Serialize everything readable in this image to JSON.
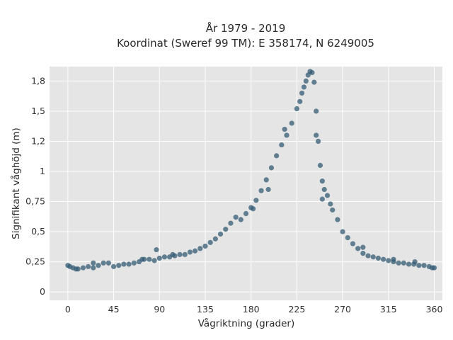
{
  "chart_data": {
    "type": "scatter",
    "title_line1": "År 1979 - 2019",
    "title_line2": "Koordinat (Sweref 99 TM): E 358174, N 6249005",
    "xlabel": "Vågriktning (grader)",
    "ylabel": "Signifikant våghöjd (m)",
    "xlim": [
      -18,
      368
    ],
    "ylim": [
      -0.07,
      1.87
    ],
    "x_ticks": [
      {
        "value": 0,
        "label": "0"
      },
      {
        "value": 45,
        "label": "45"
      },
      {
        "value": 90,
        "label": "90"
      },
      {
        "value": 135,
        "label": "135"
      },
      {
        "value": 180,
        "label": "180"
      },
      {
        "value": 225,
        "label": "225"
      },
      {
        "value": 270,
        "label": "270"
      },
      {
        "value": 315,
        "label": "315"
      },
      {
        "value": 360,
        "label": "360"
      }
    ],
    "y_ticks": [
      {
        "value": 0,
        "label": "0"
      },
      {
        "value": 0.25,
        "label": "0,25"
      },
      {
        "value": 0.5,
        "label": "0,5"
      },
      {
        "value": 0.75,
        "label": "0,75"
      },
      {
        "value": 1.0,
        "label": "1"
      },
      {
        "value": 1.25,
        "label": "1,2"
      },
      {
        "value": 1.5,
        "label": "1,5"
      },
      {
        "value": 1.75,
        "label": "1,8"
      }
    ],
    "grid": true,
    "colors": {
      "background": "#e5e5e5",
      "grid": "#ffffff",
      "marker": "#335b73"
    },
    "series": [
      {
        "marker_opacity": 0.75,
        "x": [
          0,
          2,
          5,
          8,
          10,
          15,
          20,
          25,
          30,
          35,
          40,
          45,
          50,
          55,
          60,
          65,
          70,
          75,
          80,
          85,
          90,
          95,
          100,
          105,
          110,
          115,
          120,
          125,
          130,
          135,
          140,
          145,
          150,
          155,
          160,
          165,
          170,
          175,
          180,
          185,
          190,
          195,
          200,
          205,
          210,
          215,
          220,
          225,
          228,
          230,
          232,
          234,
          236,
          238,
          240,
          242,
          244,
          246,
          248,
          250,
          252,
          255,
          258,
          260,
          265,
          270,
          275,
          280,
          285,
          290,
          295,
          300,
          305,
          310,
          315,
          320,
          325,
          330,
          335,
          340,
          345,
          350,
          355,
          358,
          360,
          25,
          73,
          87,
          103,
          182,
          197,
          213,
          244,
          250,
          290,
          320,
          341
        ],
        "y": [
          0.22,
          0.21,
          0.2,
          0.19,
          0.19,
          0.2,
          0.21,
          0.2,
          0.22,
          0.24,
          0.24,
          0.21,
          0.22,
          0.23,
          0.23,
          0.24,
          0.25,
          0.27,
          0.27,
          0.26,
          0.28,
          0.29,
          0.29,
          0.3,
          0.31,
          0.31,
          0.33,
          0.34,
          0.36,
          0.38,
          0.41,
          0.44,
          0.48,
          0.52,
          0.57,
          0.62,
          0.6,
          0.65,
          0.7,
          0.76,
          0.84,
          0.93,
          1.03,
          1.13,
          1.22,
          1.3,
          1.4,
          1.52,
          1.58,
          1.65,
          1.7,
          1.75,
          1.8,
          1.83,
          1.82,
          1.74,
          1.5,
          1.25,
          1.05,
          0.92,
          0.85,
          0.8,
          0.73,
          0.68,
          0.6,
          0.5,
          0.45,
          0.4,
          0.36,
          0.32,
          0.3,
          0.29,
          0.28,
          0.27,
          0.26,
          0.25,
          0.24,
          0.24,
          0.23,
          0.23,
          0.22,
          0.22,
          0.21,
          0.2,
          0.2,
          0.24,
          0.27,
          0.35,
          0.31,
          0.69,
          0.85,
          1.35,
          1.3,
          0.77,
          0.37,
          0.27,
          0.25
        ]
      }
    ]
  }
}
